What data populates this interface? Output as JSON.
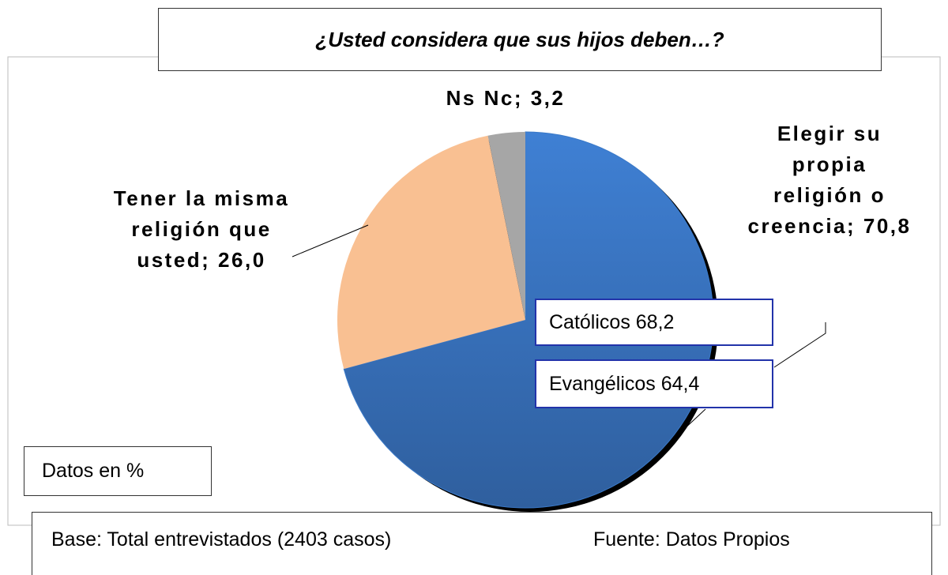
{
  "chart_data": {
    "type": "pie",
    "title": "¿Usted considera que sus hijos deben…?",
    "values": [
      70.8,
      26.0,
      3.2
    ],
    "value_labels": [
      "Elegir su propia religión o creencia; 70,8",
      "Tener la misma religión que usted; 26,0",
      "Ns Nc; 3,2"
    ],
    "colors": [
      "#3a79c8",
      "#f9c092",
      "#a6a6a6"
    ],
    "annotations": [
      "Católicos 68,2",
      "Evangélicos 64,4",
      "Datos en %",
      "Base: Total entrevistados (2403 casos)",
      "Fuente: Datos Propios"
    ]
  }
}
